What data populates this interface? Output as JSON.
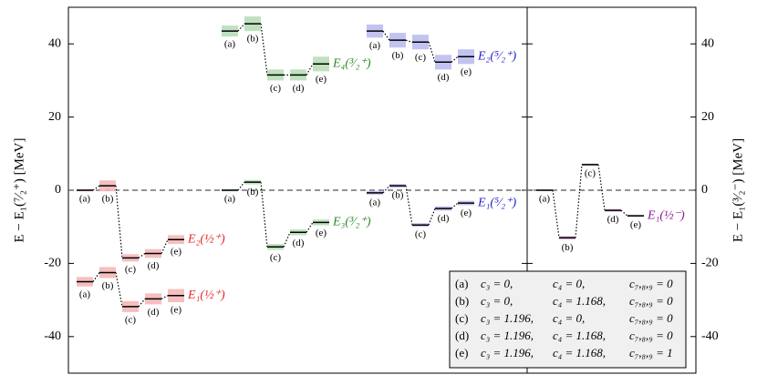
{
  "chart_data": {
    "type": "level",
    "ylabel": "E − E₁(⁷⁄₂⁺)  [MeV]",
    "y2label": "E − E₁(³⁄₂⁻)  [MeV]",
    "ylim": [
      -50,
      50
    ],
    "yticks": [
      -40,
      -20,
      0,
      20,
      40
    ],
    "y2lim": [
      -50,
      50
    ],
    "y2ticks": [
      -40,
      -20,
      0,
      20,
      40
    ],
    "hline": 0,
    "level_labels": [
      "(a)",
      "(b)",
      "(c)",
      "(d)",
      "(e)"
    ],
    "series": [
      {
        "name": "E₂(½⁺)",
        "color": "#e8262a",
        "band_color": "#f4b4b4",
        "values": [
          0,
          1.2,
          -18.5,
          -17.3,
          -13.5
        ],
        "errors": [
          0.3,
          1.5,
          1.0,
          1.2,
          1.2
        ]
      },
      {
        "name": "E₁(½⁺)",
        "color": "#e8262a",
        "band_color": "#f4b4b4",
        "values": [
          -25,
          -22.5,
          -31.8,
          -29.7,
          -28.8
        ],
        "errors": [
          1.3,
          1.5,
          1.5,
          1.5,
          1.8
        ]
      },
      {
        "name": "E₄(³⁄₂⁺)",
        "color": "#2a8a2a",
        "band_color": "#b4dcb4",
        "values": [
          43.5,
          45.5,
          31.5,
          31.5,
          34.5
        ],
        "errors": [
          1.5,
          2.0,
          1.5,
          1.5,
          2.0
        ]
      },
      {
        "name": "E₃(³⁄₂⁺)",
        "color": "#2a8a2a",
        "band_color": "#b4dcb4",
        "values": [
          0,
          2.2,
          -15.5,
          -11.5,
          -8.8
        ],
        "errors": [
          0.3,
          0.6,
          0.8,
          0.8,
          0.8
        ]
      },
      {
        "name": "E₂(⁵⁄₂⁺)",
        "color": "#2222cc",
        "band_color": "#b8b8ee",
        "values": [
          43.5,
          41,
          40.5,
          35,
          36.5
        ],
        "errors": [
          1.8,
          2.0,
          2.0,
          2.0,
          2.0
        ]
      },
      {
        "name": "E₁(⁵⁄₂⁺)",
        "color": "#2222cc",
        "band_color": "#b8b8ee",
        "values": [
          -0.7,
          1.2,
          -9.5,
          -5,
          -3.5
        ],
        "errors": [
          0.5,
          0.5,
          0.5,
          0.6,
          0.6
        ]
      },
      {
        "name": "E₁(½⁻)",
        "color": "#8b1a8b",
        "band_color": "#d8b4d8",
        "axis": "y2",
        "values": [
          0,
          -13,
          7,
          -5.5,
          -7
        ],
        "errors": [
          0.2,
          0.5,
          0.3,
          0.4,
          0.3
        ]
      }
    ],
    "legend_rows": [
      [
        "(a)",
        "c₃ = 0,",
        "c₄ = 0,",
        "c₇,₈,₉ = 0"
      ],
      [
        "(b)",
        "c₃ = 0,",
        "c₄ = 1.168,",
        "c₇,₈,₉ = 0"
      ],
      [
        "(c)",
        "c₃ = 1.196,",
        "c₄ = 0,",
        "c₇,₈,₉ = 0"
      ],
      [
        "(d)",
        "c₃ = 1.196,",
        "c₄ = 1.168,",
        "c₇,₈,₉ = 0"
      ],
      [
        "(e)",
        "c₃ = 1.196,",
        "c₄ = 1.168,",
        "c₇,₈,₉ = 1"
      ]
    ]
  }
}
